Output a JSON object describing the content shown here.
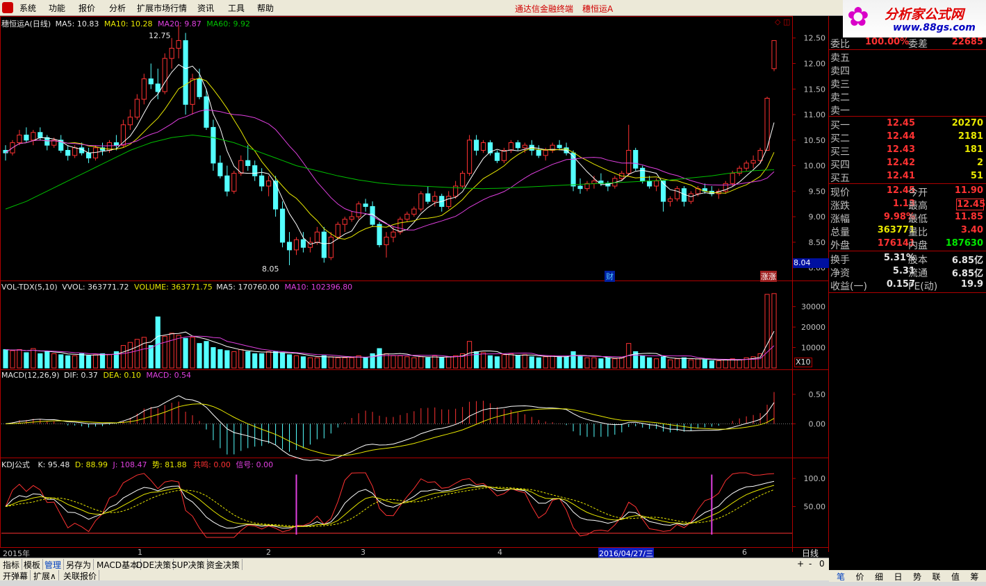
{
  "menu": {
    "items": [
      "系统",
      "功能",
      "报价",
      "分析",
      "扩展市场行情",
      "资讯",
      "工具",
      "帮助"
    ],
    "center_title": "通达信金融终端",
    "center_stock": "穗恒运A"
  },
  "logo": {
    "text": "分析家公式网",
    "url": "www.88gs.com",
    "flower": "✿"
  },
  "colors": {
    "up": "#ff3232",
    "down": "#54ffff",
    "ma5": "#ffffff",
    "ma10": "#e8e800",
    "ma20": "#e040e0",
    "ma60": "#00c000",
    "axis": "#b00000",
    "bg": "#000000"
  },
  "price_panel": {
    "title": "穗恒运A(日线)",
    "ma5_label": "MA5: 10.83",
    "ma10_label": "MA10: 10.28",
    "ma20_label": "MA20: 9.87",
    "ma60_label": "MA60: 9.92",
    "high_mark": "12.75",
    "low_mark": "8.05",
    "y_ticks": [
      "12.50",
      "12.00",
      "11.50",
      "11.00",
      "10.50",
      "10.00",
      "9.50",
      "9.00",
      "8.50",
      "8.00"
    ],
    "y_range": [
      7.9,
      12.85
    ],
    "cursor_price": "8.04",
    "tag_cai": "财",
    "tag_zhang": "涨涨",
    "corner_icons": "◇ ◫"
  },
  "volume_panel": {
    "label_name": "VOL-TDX(5,10)",
    "vvol": "VVOL: 363771.72",
    "volume": "VOLUME: 363771.75",
    "ma5": "MA5: 170760.00",
    "ma10": "MA10: 102396.80",
    "y_ticks": [
      "30000",
      "20000",
      "10000"
    ],
    "unit": "X10",
    "y_range": [
      0,
      37000
    ]
  },
  "macd_panel": {
    "label_name": "MACD(12,26,9)",
    "dif": "DIF: 0.37",
    "dea": "DEA: 0.10",
    "macd": "MACD: 0.54",
    "y_ticks": [
      "0.50",
      "0.00"
    ],
    "y_range": [
      -0.55,
      0.7
    ]
  },
  "kdj_panel": {
    "label_name": "KDJ公式",
    "k": "K: 95.48",
    "d": "D: 88.99",
    "j": "J: 108.47",
    "shi": "势: 81.88",
    "gongming": "共鸣: 0.00",
    "xinhao": "信号: 0.00",
    "y_ticks": [
      "100.0",
      "50.00"
    ],
    "y_range": [
      0,
      115
    ]
  },
  "time_axis": {
    "labels": [
      "2015年",
      "1",
      "2",
      "3",
      "4",
      "2016/04/27/三",
      "6"
    ],
    "period": "日线"
  },
  "tabs_row1": [
    "指标",
    "模板",
    "管理",
    "另存为",
    "MACD基本",
    "DDE决策",
    "SUP决策",
    "资金决策"
  ],
  "tabs_row2": [
    "开弹幕",
    "扩展∧",
    "关联报价"
  ],
  "scroll_controls": [
    "+",
    "-",
    "0"
  ],
  "quote": {
    "webi_label": "委比",
    "webi": "100.00%",
    "weicha_label": "委差",
    "weicha": "22685",
    "sell": [
      {
        "label": "卖五",
        "price": "",
        "vol": ""
      },
      {
        "label": "卖四",
        "price": "",
        "vol": ""
      },
      {
        "label": "卖三",
        "price": "",
        "vol": ""
      },
      {
        "label": "卖二",
        "price": "",
        "vol": ""
      },
      {
        "label": "卖一",
        "price": "",
        "vol": ""
      }
    ],
    "buy": [
      {
        "label": "买一",
        "price": "12.45",
        "vol": "20270"
      },
      {
        "label": "买二",
        "price": "12.44",
        "vol": "2181"
      },
      {
        "label": "买三",
        "price": "12.43",
        "vol": "181"
      },
      {
        "label": "买四",
        "price": "12.42",
        "vol": "2"
      },
      {
        "label": "买五",
        "price": "12.41",
        "vol": "51"
      }
    ],
    "stats": [
      {
        "l1": "现价",
        "v1": "12.45",
        "c1": "red",
        "l2": "今开",
        "v2": "11.90",
        "c2": "red"
      },
      {
        "l1": "涨跌",
        "v1": "1.13",
        "c1": "red",
        "l2": "最高",
        "v2": "12.45",
        "c2": "red"
      },
      {
        "l1": "涨幅",
        "v1": "9.98%",
        "c1": "red",
        "l2": "最低",
        "v2": "11.85",
        "c2": "red"
      },
      {
        "l1": "总量",
        "v1": "363771",
        "c1": "yellow",
        "l2": "量比",
        "v2": "3.40",
        "c2": "red"
      },
      {
        "l1": "外盘",
        "v1": "176141",
        "c1": "red",
        "l2": "内盘",
        "v2": "187630",
        "c2": "green"
      }
    ],
    "fund": [
      {
        "l1": "换手",
        "v1": "5.31%",
        "l2": "股本",
        "v2": "6.85亿"
      },
      {
        "l1": "净资",
        "v1": "5.31",
        "l2": "流通",
        "v2": "6.85亿"
      },
      {
        "l1": "收益(一)",
        "v1": "0.157",
        "l2": "PE(动)",
        "v2": "19.9"
      }
    ],
    "tabs": [
      "笔",
      "价",
      "细",
      "日",
      "势",
      "联",
      "值",
      "筹"
    ]
  },
  "chart_data": {
    "type": "candlestick",
    "candles": [
      [
        10.3,
        10.4,
        10.1,
        10.25
      ],
      [
        10.25,
        10.5,
        10.2,
        10.45
      ],
      [
        10.45,
        10.7,
        10.4,
        10.6
      ],
      [
        10.6,
        10.75,
        10.45,
        10.5
      ],
      [
        10.5,
        10.7,
        10.4,
        10.65
      ],
      [
        10.65,
        10.75,
        10.5,
        10.55
      ],
      [
        10.55,
        10.6,
        10.3,
        10.4
      ],
      [
        10.4,
        10.55,
        10.35,
        10.5
      ],
      [
        10.5,
        10.6,
        10.25,
        10.3
      ],
      [
        10.3,
        10.4,
        10.1,
        10.2
      ],
      [
        10.2,
        10.4,
        10.15,
        10.35
      ],
      [
        10.35,
        10.45,
        10.2,
        10.25
      ],
      [
        10.25,
        10.35,
        10.05,
        10.15
      ],
      [
        10.15,
        10.4,
        10.1,
        10.35
      ],
      [
        10.35,
        10.45,
        10.2,
        10.3
      ],
      [
        10.3,
        10.5,
        10.25,
        10.45
      ],
      [
        10.45,
        10.6,
        10.3,
        10.4
      ],
      [
        10.4,
        10.9,
        10.35,
        10.8
      ],
      [
        10.8,
        11.1,
        10.7,
        10.95
      ],
      [
        10.95,
        11.4,
        10.9,
        11.3
      ],
      [
        11.3,
        11.8,
        11.2,
        11.7
      ],
      [
        11.7,
        12.0,
        11.5,
        11.6
      ],
      [
        11.6,
        11.9,
        11.3,
        11.45
      ],
      [
        11.45,
        12.2,
        11.4,
        12.1
      ],
      [
        12.1,
        12.5,
        11.9,
        12.3
      ],
      [
        12.3,
        12.75,
        12.1,
        12.45
      ],
      [
        12.45,
        12.6,
        11.0,
        11.2
      ],
      [
        11.2,
        11.8,
        11.0,
        11.7
      ],
      [
        11.7,
        11.9,
        11.3,
        11.35
      ],
      [
        11.35,
        11.5,
        10.7,
        10.75
      ],
      [
        10.75,
        10.9,
        9.9,
        10.05
      ],
      [
        10.05,
        10.2,
        9.75,
        9.8
      ],
      [
        9.8,
        10.0,
        9.4,
        9.5
      ],
      [
        9.5,
        9.9,
        9.45,
        9.85
      ],
      [
        9.85,
        10.2,
        9.8,
        10.1
      ],
      [
        10.1,
        10.4,
        9.9,
        10.0
      ],
      [
        10.0,
        10.1,
        9.7,
        9.8
      ],
      [
        9.8,
        9.95,
        9.5,
        9.6
      ],
      [
        9.6,
        9.8,
        9.4,
        9.7
      ],
      [
        9.7,
        9.8,
        9.0,
        9.15
      ],
      [
        9.15,
        9.3,
        8.4,
        8.5
      ],
      [
        8.5,
        8.7,
        8.05,
        8.35
      ],
      [
        8.35,
        8.6,
        8.25,
        8.55
      ],
      [
        8.55,
        8.7,
        8.3,
        8.4
      ],
      [
        8.4,
        8.6,
        8.3,
        8.5
      ],
      [
        8.5,
        8.8,
        8.45,
        8.7
      ],
      [
        8.7,
        8.8,
        8.1,
        8.2
      ],
      [
        8.2,
        8.7,
        8.15,
        8.6
      ],
      [
        8.6,
        8.9,
        8.55,
        8.85
      ],
      [
        8.85,
        9.0,
        8.7,
        8.95
      ],
      [
        8.95,
        9.1,
        8.9,
        9.0
      ],
      [
        9.0,
        9.3,
        8.95,
        9.25
      ],
      [
        9.25,
        9.35,
        9.1,
        9.2
      ],
      [
        9.2,
        9.3,
        8.8,
        8.85
      ],
      [
        8.85,
        8.9,
        8.4,
        8.45
      ],
      [
        8.45,
        8.7,
        8.2,
        8.6
      ],
      [
        8.6,
        8.8,
        8.5,
        8.7
      ],
      [
        8.7,
        9.0,
        8.65,
        8.95
      ],
      [
        8.95,
        9.1,
        8.9,
        9.05
      ],
      [
        9.05,
        9.2,
        9.0,
        9.15
      ],
      [
        9.15,
        9.5,
        9.1,
        9.45
      ],
      [
        9.45,
        9.6,
        9.25,
        9.3
      ],
      [
        9.3,
        9.5,
        9.2,
        9.4
      ],
      [
        9.4,
        9.45,
        9.1,
        9.2
      ],
      [
        9.2,
        9.5,
        9.15,
        9.4
      ],
      [
        9.4,
        9.7,
        9.35,
        9.6
      ],
      [
        9.6,
        9.9,
        9.55,
        9.85
      ],
      [
        9.85,
        10.6,
        9.8,
        10.5
      ],
      [
        10.5,
        10.6,
        10.2,
        10.3
      ],
      [
        10.3,
        10.5,
        10.25,
        10.45
      ],
      [
        10.45,
        10.5,
        10.2,
        10.25
      ],
      [
        10.25,
        10.3,
        10.05,
        10.1
      ],
      [
        10.1,
        10.35,
        10.05,
        10.3
      ],
      [
        10.3,
        10.5,
        10.25,
        10.45
      ],
      [
        10.45,
        10.5,
        10.3,
        10.35
      ],
      [
        10.35,
        10.45,
        10.25,
        10.4
      ],
      [
        10.4,
        10.5,
        10.2,
        10.3
      ],
      [
        10.3,
        10.4,
        10.15,
        10.2
      ],
      [
        10.2,
        10.35,
        10.1,
        10.3
      ],
      [
        10.3,
        10.45,
        10.25,
        10.4
      ],
      [
        10.4,
        10.5,
        10.3,
        10.35
      ],
      [
        10.35,
        10.45,
        10.2,
        10.25
      ],
      [
        10.25,
        10.3,
        9.5,
        9.6
      ],
      [
        9.6,
        9.75,
        9.45,
        9.55
      ],
      [
        9.55,
        9.7,
        9.5,
        9.65
      ],
      [
        9.65,
        9.8,
        9.55,
        9.7
      ],
      [
        9.7,
        9.85,
        9.6,
        9.65
      ],
      [
        9.65,
        9.7,
        9.5,
        9.6
      ],
      [
        9.6,
        9.8,
        9.55,
        9.75
      ],
      [
        9.75,
        9.9,
        9.7,
        9.85
      ],
      [
        9.85,
        10.8,
        9.8,
        10.3
      ],
      [
        10.3,
        10.35,
        9.9,
        9.95
      ],
      [
        9.95,
        10.0,
        9.65,
        9.7
      ],
      [
        9.7,
        9.8,
        9.55,
        9.6
      ],
      [
        9.6,
        9.75,
        9.5,
        9.7
      ],
      [
        9.7,
        9.72,
        9.1,
        9.3
      ],
      [
        9.3,
        9.4,
        9.2,
        9.35
      ],
      [
        9.35,
        9.6,
        9.3,
        9.55
      ],
      [
        9.55,
        9.6,
        9.2,
        9.3
      ],
      [
        9.3,
        9.5,
        9.25,
        9.45
      ],
      [
        9.45,
        9.6,
        9.4,
        9.55
      ],
      [
        9.55,
        9.65,
        9.45,
        9.5
      ],
      [
        9.5,
        9.6,
        9.4,
        9.45
      ],
      [
        9.45,
        9.55,
        9.35,
        9.5
      ],
      [
        9.5,
        9.7,
        9.45,
        9.65
      ],
      [
        9.65,
        9.9,
        9.6,
        9.85
      ],
      [
        9.85,
        10.0,
        9.8,
        9.95
      ],
      [
        9.95,
        10.1,
        9.9,
        10.05
      ],
      [
        10.05,
        10.2,
        9.95,
        10.1
      ],
      [
        10.1,
        10.35,
        10.05,
        10.3
      ],
      [
        10.3,
        11.35,
        10.3,
        11.32
      ],
      [
        11.9,
        12.45,
        11.85,
        12.45
      ]
    ],
    "volume": [
      9000,
      8500,
      9000,
      7500,
      9500,
      7000,
      8000,
      7000,
      6500,
      6000,
      6000,
      7000,
      6000,
      6500,
      7000,
      6500,
      8000,
      11000,
      12500,
      14000,
      15000,
      11000,
      25000,
      15500,
      17000,
      16000,
      14500,
      15000,
      12000,
      13000,
      10000,
      9000,
      8500,
      8000,
      9000,
      8000,
      7000,
      7000,
      8000,
      8000,
      7500,
      6500,
      6000,
      5500,
      5000,
      5000,
      6000,
      5500,
      5000,
      5000,
      5000,
      6000,
      5000,
      7000,
      9500,
      7000,
      6000,
      6000,
      5500,
      5000,
      5500,
      5000,
      6000,
      5000,
      5500,
      6000,
      7000,
      13000,
      8000,
      7500,
      6000,
      5500,
      6500,
      7000,
      6000,
      6500,
      5500,
      5000,
      5500,
      6000,
      5500,
      5500,
      8000,
      6000,
      5000,
      5000,
      4500,
      5000,
      4500,
      5000,
      12000,
      8000,
      6000,
      5000,
      4500,
      5500,
      4000,
      4500,
      5000,
      4000,
      4500,
      4000,
      3500,
      3500,
      4000,
      4500,
      4000,
      5000,
      5500,
      7000,
      36000,
      36377
    ],
    "macd_y_range": [
      -0.55,
      0.7
    ],
    "kdj_y_range": [
      0,
      115
    ],
    "price_y_range": [
      7.9,
      12.85
    ]
  }
}
